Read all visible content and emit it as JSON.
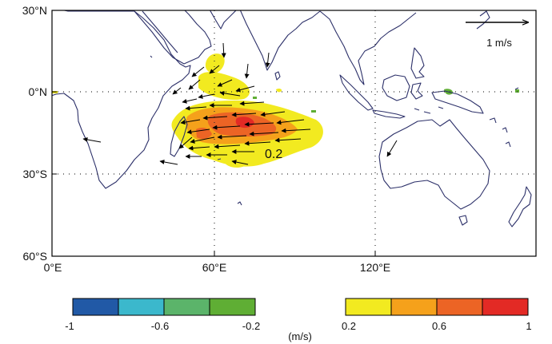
{
  "map": {
    "lat_ticks": [
      {
        "value": 30,
        "label": "30°N"
      },
      {
        "value": 0,
        "label": "0°N"
      },
      {
        "value": -30,
        "label": "30°S"
      },
      {
        "value": -60,
        "label": "60°S"
      }
    ],
    "lon_ticks": [
      {
        "value": 0,
        "label": "0°E"
      },
      {
        "value": 60,
        "label": "60°E"
      },
      {
        "value": 120,
        "label": "120°E"
      }
    ],
    "lon_range": [
      0,
      180
    ],
    "lat_range": [
      -60,
      30
    ],
    "grid_lines": {
      "lat": [
        0,
        -30
      ],
      "lon": [
        60,
        120
      ]
    },
    "contour_label": "0.2",
    "reference_vector": {
      "label": "1 m/s",
      "magnitude": 1
    },
    "colors": {
      "coast": "#2c3069",
      "arrow": "#000000",
      "neg": [
        "#2159a6",
        "#3bb8cc",
        "#5bb46a",
        "#5fae34"
      ],
      "pos": [
        "#f2ea20",
        "#f5a11b",
        "#ec6425",
        "#e32a25"
      ]
    }
  },
  "colorbars": {
    "negative": {
      "ticks": [
        "-1",
        "-0.6",
        "-0.2"
      ]
    },
    "positive": {
      "ticks": [
        "0.2",
        "0.6",
        "1"
      ]
    },
    "unit": "(m/s)"
  }
}
